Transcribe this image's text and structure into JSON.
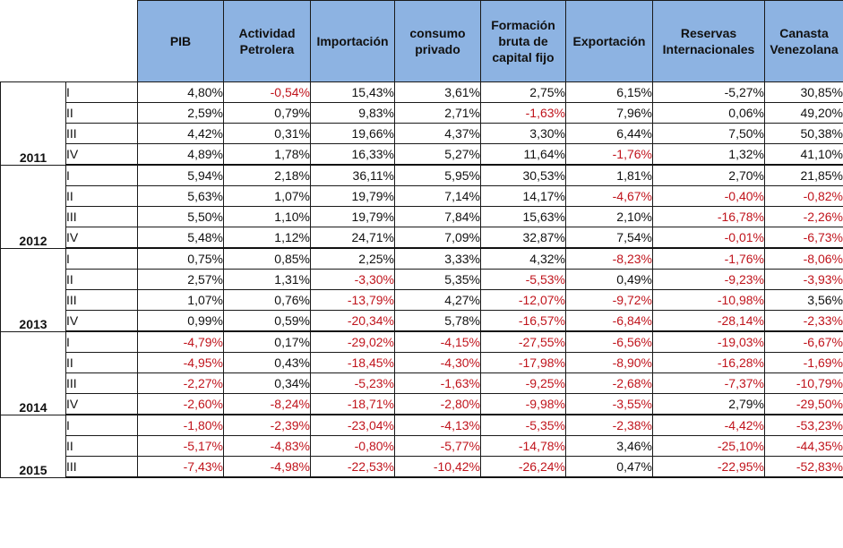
{
  "columns": [
    "PIB",
    "Actividad Petrolera",
    "Importación",
    "consumo privado",
    "Formación bruta de capital fijo",
    "Exportación",
    "Reservas Internacionales",
    "Canasta Venezolana"
  ],
  "years": [
    {
      "year": "2011",
      "rows": [
        {
          "q": "I",
          "values": [
            "4,80%",
            "-0,54%",
            "15,43%",
            "3,61%",
            "2,75%",
            "6,15%",
            "-5,27%",
            "30,85%"
          ],
          "neg": [
            false,
            true,
            false,
            false,
            false,
            false,
            false,
            false
          ]
        },
        {
          "q": "II",
          "values": [
            "2,59%",
            "0,79%",
            "9,83%",
            "2,71%",
            "-1,63%",
            "7,96%",
            "0,06%",
            "49,20%"
          ],
          "neg": [
            false,
            false,
            false,
            false,
            true,
            false,
            false,
            false
          ]
        },
        {
          "q": "III",
          "values": [
            "4,42%",
            "0,31%",
            "19,66%",
            "4,37%",
            "3,30%",
            "6,44%",
            "7,50%",
            "50,38%"
          ],
          "neg": [
            false,
            false,
            false,
            false,
            false,
            false,
            false,
            false
          ]
        },
        {
          "q": "IV",
          "values": [
            "4,89%",
            "1,78%",
            "16,33%",
            "5,27%",
            "11,64%",
            "-1,76%",
            "1,32%",
            "41,10%"
          ],
          "neg": [
            false,
            false,
            false,
            false,
            false,
            true,
            false,
            false
          ]
        }
      ]
    },
    {
      "year": "2012",
      "rows": [
        {
          "q": "I",
          "values": [
            "5,94%",
            "2,18%",
            "36,11%",
            "5,95%",
            "30,53%",
            "1,81%",
            "2,70%",
            "21,85%"
          ],
          "neg": [
            false,
            false,
            false,
            false,
            false,
            false,
            false,
            false
          ]
        },
        {
          "q": "II",
          "values": [
            "5,63%",
            "1,07%",
            "19,79%",
            "7,14%",
            "14,17%",
            "-4,67%",
            "-0,40%",
            "-0,82%"
          ],
          "neg": [
            false,
            false,
            false,
            false,
            false,
            true,
            true,
            true
          ]
        },
        {
          "q": "III",
          "values": [
            "5,50%",
            "1,10%",
            "19,79%",
            "7,84%",
            "15,63%",
            "2,10%",
            "-16,78%",
            "-2,26%"
          ],
          "neg": [
            false,
            false,
            false,
            false,
            false,
            false,
            true,
            true
          ]
        },
        {
          "q": "IV",
          "values": [
            "5,48%",
            "1,12%",
            "24,71%",
            "7,09%",
            "32,87%",
            "7,54%",
            "-0,01%",
            "-6,73%"
          ],
          "neg": [
            false,
            false,
            false,
            false,
            false,
            false,
            true,
            true
          ]
        }
      ]
    },
    {
      "year": "2013",
      "rows": [
        {
          "q": "I",
          "values": [
            "0,75%",
            "0,85%",
            "2,25%",
            "3,33%",
            "4,32%",
            "-8,23%",
            "-1,76%",
            "-8,06%"
          ],
          "neg": [
            false,
            false,
            false,
            false,
            false,
            true,
            true,
            true
          ]
        },
        {
          "q": "II",
          "values": [
            "2,57%",
            "1,31%",
            "-3,30%",
            "5,35%",
            "-5,53%",
            "0,49%",
            "-9,23%",
            "-3,93%"
          ],
          "neg": [
            false,
            false,
            true,
            false,
            true,
            false,
            true,
            true
          ]
        },
        {
          "q": "III",
          "values": [
            "1,07%",
            "0,76%",
            "-13,79%",
            "4,27%",
            "-12,07%",
            "-9,72%",
            "-10,98%",
            "3,56%"
          ],
          "neg": [
            false,
            false,
            true,
            false,
            true,
            true,
            true,
            false
          ]
        },
        {
          "q": "IV",
          "values": [
            "0,99%",
            "0,59%",
            "-20,34%",
            "5,78%",
            "-16,57%",
            "-6,84%",
            "-28,14%",
            "-2,33%"
          ],
          "neg": [
            false,
            false,
            true,
            false,
            true,
            true,
            true,
            true
          ]
        }
      ]
    },
    {
      "year": "2014",
      "rows": [
        {
          "q": "I",
          "values": [
            "-4,79%",
            "0,17%",
            "-29,02%",
            "-4,15%",
            "-27,55%",
            "-6,56%",
            "-19,03%",
            "-6,67%"
          ],
          "neg": [
            true,
            false,
            true,
            true,
            true,
            true,
            true,
            true
          ]
        },
        {
          "q": "II",
          "values": [
            "-4,95%",
            "0,43%",
            "-18,45%",
            "-4,30%",
            "-17,98%",
            "-8,90%",
            "-16,28%",
            "-1,69%"
          ],
          "neg": [
            true,
            false,
            true,
            true,
            true,
            true,
            true,
            true
          ]
        },
        {
          "q": "III",
          "values": [
            "-2,27%",
            "0,34%",
            "-5,23%",
            "-1,63%",
            "-9,25%",
            "-2,68%",
            "-7,37%",
            "-10,79%"
          ],
          "neg": [
            true,
            false,
            true,
            true,
            true,
            true,
            true,
            true
          ]
        },
        {
          "q": "IV",
          "values": [
            "-2,60%",
            "-8,24%",
            "-18,71%",
            "-2,80%",
            "-9,98%",
            "-3,55%",
            "2,79%",
            "-29,50%"
          ],
          "neg": [
            true,
            true,
            true,
            true,
            true,
            true,
            false,
            true
          ]
        }
      ]
    },
    {
      "year": "2015",
      "rows": [
        {
          "q": "I",
          "values": [
            "-1,80%",
            "-2,39%",
            "-23,04%",
            "-4,13%",
            "-5,35%",
            "-2,38%",
            "-4,42%",
            "-53,23%"
          ],
          "neg": [
            true,
            true,
            true,
            true,
            true,
            true,
            true,
            true
          ]
        },
        {
          "q": "II",
          "values": [
            "-5,17%",
            "-4,83%",
            "-0,80%",
            "-5,77%",
            "-14,78%",
            "3,46%",
            "-25,10%",
            "-44,35%"
          ],
          "neg": [
            true,
            true,
            true,
            true,
            true,
            false,
            true,
            true
          ]
        },
        {
          "q": "III",
          "values": [
            "-7,43%",
            "-4,98%",
            "-22,53%",
            "-10,42%",
            "-26,24%",
            "0,47%",
            "-22,95%",
            "-52,83%"
          ],
          "neg": [
            true,
            true,
            true,
            true,
            true,
            false,
            true,
            true
          ]
        }
      ]
    }
  ],
  "colors": {
    "header_bg": "#8db3e2",
    "negative": "#c0141c",
    "text": "#111111",
    "grid": "#1a1a1a"
  }
}
